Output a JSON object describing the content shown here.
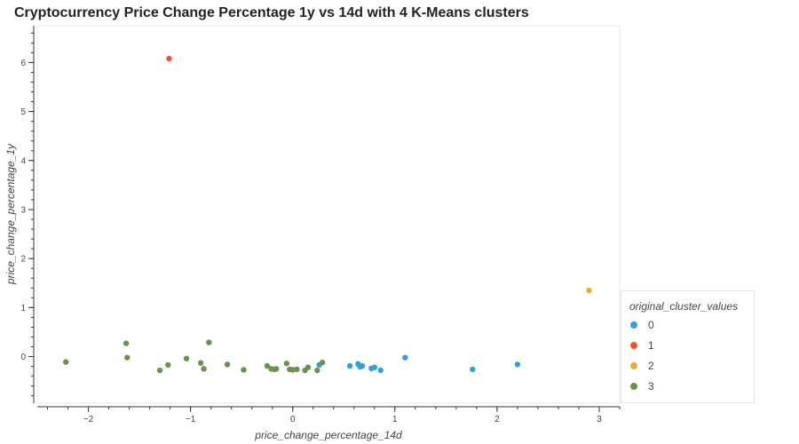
{
  "chart_data": {
    "type": "scatter",
    "title": "Cryptocurrency Price Change Percentage 1y vs 14d with 4 K-Means clusters",
    "xlabel": "price_change_percentage_14d",
    "ylabel": "price_change_percentage_1y",
    "xlim": [
      -2.5,
      3.2
    ],
    "ylim": [
      -0.95,
      6.75
    ],
    "x_ticks": [
      -2,
      -1,
      0,
      1,
      2,
      3
    ],
    "x_tick_labels": [
      "−2",
      "−1",
      "0",
      "1",
      "2",
      "3"
    ],
    "y_ticks": [
      0,
      1,
      2,
      3,
      4,
      5,
      6
    ],
    "y_tick_labels": [
      "0",
      "1",
      "2",
      "3",
      "4",
      "5",
      "6"
    ],
    "grid": false,
    "legend": {
      "title": "original_cluster_values",
      "placement": "right",
      "entries": [
        "0",
        "1",
        "2",
        "3"
      ]
    },
    "series": [
      {
        "name": "0",
        "color": "#30a2da",
        "x": [
          0.26,
          0.56,
          0.64,
          0.66,
          0.68,
          0.77,
          0.8,
          0.86,
          1.1,
          1.76,
          2.2
        ],
        "y": [
          -0.17,
          -0.19,
          -0.15,
          -0.21,
          -0.19,
          -0.24,
          -0.22,
          -0.28,
          -0.02,
          -0.26,
          -0.16
        ]
      },
      {
        "name": "1",
        "color": "#fc4f30",
        "x": [
          -1.21
        ],
        "y": [
          6.08
        ]
      },
      {
        "name": "2",
        "color": "#e5ae38",
        "x": [
          2.9
        ],
        "y": [
          1.35
        ]
      },
      {
        "name": "3",
        "color": "#6d904f",
        "x": [
          -2.22,
          -1.63,
          -1.62,
          -1.3,
          -1.22,
          -1.04,
          -0.9,
          -0.87,
          -0.82,
          -0.64,
          -0.48,
          -0.25,
          -0.21,
          -0.18,
          -0.16,
          -0.06,
          -0.03,
          0.0,
          0.04,
          0.12,
          0.15,
          0.24,
          0.29
        ],
        "y": [
          -0.11,
          0.27,
          -0.02,
          -0.28,
          -0.17,
          -0.04,
          -0.13,
          -0.25,
          0.29,
          -0.16,
          -0.27,
          -0.19,
          -0.25,
          -0.26,
          -0.25,
          -0.14,
          -0.26,
          -0.27,
          -0.26,
          -0.28,
          -0.22,
          -0.28,
          -0.12
        ]
      }
    ]
  }
}
